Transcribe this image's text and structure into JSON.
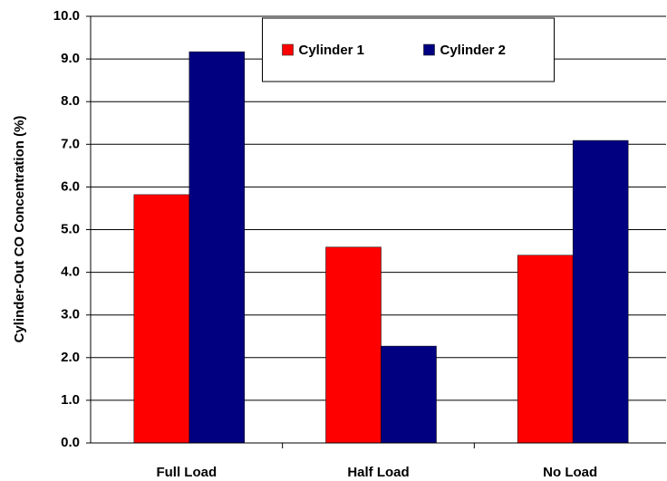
{
  "chart_data": {
    "type": "bar",
    "y_label": "Cylinder-Out CO Concentration (%)",
    "categories": [
      "Full Load",
      "Half Load",
      "No Load"
    ],
    "series": [
      {
        "name": "Cylinder 1",
        "color": "#ff0000",
        "values": [
          5.82,
          4.59,
          4.4
        ]
      },
      {
        "name": "Cylinder 2",
        "color": "#000080",
        "values": [
          9.17,
          2.27,
          7.09
        ]
      }
    ],
    "ylim": [
      0,
      10
    ],
    "yticks": [
      {
        "value": 0,
        "label": "0.0"
      },
      {
        "value": 1,
        "label": "1.0"
      },
      {
        "value": 2,
        "label": "2.0"
      },
      {
        "value": 3,
        "label": "3.0"
      },
      {
        "value": 4,
        "label": "4.0"
      },
      {
        "value": 5,
        "label": "5.0"
      },
      {
        "value": 6,
        "label": "6.0"
      },
      {
        "value": 7,
        "label": "7.0"
      },
      {
        "value": 8,
        "label": "8.0"
      },
      {
        "value": 9,
        "label": "9.0"
      },
      {
        "value": 10,
        "label": "10.0"
      }
    ],
    "grid": true,
    "legend": "top"
  }
}
